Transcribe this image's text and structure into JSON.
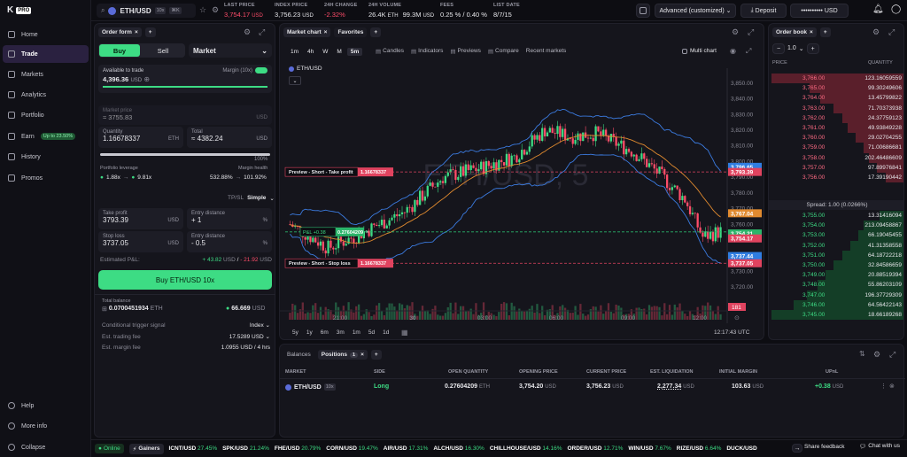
{
  "app": {
    "logo": "K",
    "pro": "PRO"
  },
  "nav": [
    {
      "label": "Home",
      "icon": "home-icon"
    },
    {
      "label": "Trade",
      "icon": "trade-icon"
    },
    {
      "label": "Markets",
      "icon": "markets-icon"
    },
    {
      "label": "Analytics",
      "icon": "analytics-icon"
    },
    {
      "label": "Portfolio",
      "icon": "portfolio-icon"
    },
    {
      "label": "Earn",
      "icon": "earn-icon",
      "pill": "Up to 23.50%"
    },
    {
      "label": "History",
      "icon": "history-icon"
    },
    {
      "label": "Promos",
      "icon": "promos-icon"
    }
  ],
  "nav_bottom": [
    {
      "label": "Help"
    },
    {
      "label": "More info"
    },
    {
      "label": "Collapse"
    }
  ],
  "top": {
    "symbol": "ETH/USD",
    "leverage": "10x",
    "kbd": "⌘K",
    "stats": [
      {
        "label": "LAST PRICE",
        "value": "3,754.17",
        "unit": "USD",
        "color": "#ff4d6a"
      },
      {
        "label": "INDEX PRICE",
        "value": "3,756.23",
        "unit": "USD",
        "color": "#e6e6ea"
      },
      {
        "label": "24H CHANGE",
        "value": "-2.32%",
        "unit": "",
        "color": "#ff4d6a"
      },
      {
        "label": "24H VOLUME",
        "value": "26.4K",
        "unit": "ETH",
        "value2": "99.3M",
        "unit2": "USD",
        "color": "#e6e6ea"
      },
      {
        "label": "FEES",
        "value": "0.25 % / 0.40 %",
        "unit": "",
        "color": "#e6e6ea"
      },
      {
        "label": "LIST DATE",
        "value": "8/7/15",
        "unit": "",
        "color": "#e6e6ea"
      }
    ],
    "mode": "Advanced (customized)",
    "deposit": "Deposit",
    "balance_mask": "••••••••••",
    "balance_unit": "USD"
  },
  "order_form": {
    "tab": "Order form",
    "side_buy": "Buy",
    "side_sell": "Sell",
    "type": "Market",
    "avail_label": "Available to trade",
    "avail_value": "4,396.36",
    "avail_unit": "USD",
    "margin_label": "Margin (10x)",
    "slider_pct": "100%",
    "market_price_label": "Market price",
    "market_price": "≈ 3755.83",
    "market_price_unit": "USD",
    "qty_label": "Quantity",
    "qty": "1.16678337",
    "qty_unit": "ETH",
    "total_label": "Total",
    "total": "≈ 4382.24",
    "total_unit": "USD",
    "lev_label": "Portfolio leverage",
    "lev_from": "1.88x",
    "lev_to": "9.81x",
    "health_label": "Margin health",
    "health_from": "532.88%",
    "health_to": "101.92%",
    "tpsl_label": "TP/SL",
    "tpsl_mode": "Simple",
    "tp_label": "Take profit",
    "tp": "3793.39",
    "tp_unit": "USD",
    "ed_label": "Entry distance",
    "ed": "+ 1",
    "ed_unit": "%",
    "sl_label": "Stop loss",
    "sl": "3737.05",
    "sl_unit": "USD",
    "ed2_label": "Entry distance",
    "ed2": "- 0.5",
    "ed2_unit": "%",
    "pnl_label": "Estimated P&L:",
    "pnl_pos": "+ 43.82",
    "pnl_neg": "- 21.92",
    "pnl_unit": "USD",
    "submit": "Buy ETH/USD 10x",
    "total_balance_label": "Total balance",
    "total_balance": "0.0700451934",
    "total_balance_unit": "ETH",
    "collateral": "66.669",
    "collateral_unit": "USD",
    "trigger_label": "Conditional trigger signal",
    "trigger": "Index",
    "fee_label": "Est. trading fee",
    "fee": "17.5289 USD",
    "mfee_label": "Est. margin fee",
    "mfee": "1.0955 USD / 4 hrs"
  },
  "chart": {
    "tab": "Market chart",
    "tab2": "Favorites",
    "intervals": [
      "1m",
      "4h",
      "W",
      "M",
      "5m"
    ],
    "tools": [
      "Candles",
      "Indicators",
      "Previews",
      "Compare",
      "Recent markets"
    ],
    "multi": "Multi chart",
    "pair": "ETH/USD",
    "watermark": "ETH/USD, 5",
    "tp_preview": "Preview - Short - Take profit",
    "tp_qty": "1.16678337",
    "sl_preview": "Preview - Short - Stop loss",
    "sl_qty": "1.16678337",
    "pnl_chip": "P&L +0.38",
    "pnl_qty": "0.27604209",
    "y_ticks": [
      "3,850.00",
      "3,840.00",
      "3,830.00",
      "3,820.00",
      "3,810.00",
      "3,800.00",
      "3,790.00",
      "3,780.00",
      "3,770.00",
      "3,760.00",
      "3,750.00",
      "3,740.00",
      "3,730.00",
      "3,720.00"
    ],
    "price_tags": [
      {
        "v": "3,796.65",
        "c": "#2f7de1",
        "p": 3796.65
      },
      {
        "v": "3,793.39",
        "c": "#e0435f",
        "p": 3793.39
      },
      {
        "v": "3,767.04",
        "c": "#e08a2f",
        "p": 3767.04
      },
      {
        "v": "3,754.21",
        "c": "#2bb56a",
        "p": 3754.21
      },
      {
        "v": "3,754.17",
        "c": "#e0435f",
        "p": 3751.0
      },
      {
        "v": "3,737.44",
        "c": "#2f7de1",
        "p": 3739.8
      },
      {
        "v": "3,737.05",
        "c": "#e0435f",
        "p": 3735.2
      }
    ],
    "vol_tag": "181",
    "x_ticks": [
      "21:00",
      "30",
      "03:00",
      "06:00",
      "09:00",
      "12:00"
    ],
    "ranges": [
      "5y",
      "1y",
      "6m",
      "3m",
      "1m",
      "5d",
      "1d"
    ],
    "clock": "12:17:43 UTC"
  },
  "orderbook": {
    "tab": "Order book",
    "group": "1.0",
    "price_h": "PRICE",
    "qty_h": "QUANTITY",
    "asks": [
      {
        "p": "3,766.00",
        "q": "123.16059559",
        "w": 0.98
      },
      {
        "p": "3,765.00",
        "q": "99.30249606",
        "w": 0.7
      },
      {
        "p": "3,764.00",
        "q": "13.45799822",
        "w": 0.62
      },
      {
        "p": "3,763.00",
        "q": "71.70373938",
        "w": 0.52
      },
      {
        "p": "3,762.00",
        "q": "24.37759123",
        "w": 0.46
      },
      {
        "p": "3,761.00",
        "q": "49.93849228",
        "w": 0.42
      },
      {
        "p": "3,760.00",
        "q": "29.02704255",
        "w": 0.36
      },
      {
        "p": "3,759.00",
        "q": "71.00686681",
        "w": 0.3
      },
      {
        "p": "3,758.00",
        "q": "202.46486609",
        "w": 0.26
      },
      {
        "p": "3,757.00",
        "q": "97.89976841",
        "w": 0.2
      },
      {
        "p": "3,756.00",
        "q": "17.39190442",
        "w": 0.14
      }
    ],
    "spread": "Spread: 1.00 (0.0266%)",
    "bids": [
      {
        "p": "3,755.00",
        "q": "13.31416094",
        "w": 0.18
      },
      {
        "p": "3,754.00",
        "q": "213.09458867",
        "w": 0.3
      },
      {
        "p": "3,753.00",
        "q": "66.19045455",
        "w": 0.34
      },
      {
        "p": "3,752.00",
        "q": "41.31358558",
        "w": 0.4
      },
      {
        "p": "3,751.00",
        "q": "64.18722218",
        "w": 0.46
      },
      {
        "p": "3,750.00",
        "q": "32.84586659",
        "w": 0.52
      },
      {
        "p": "3,749.00",
        "q": "20.88519394",
        "w": 0.58
      },
      {
        "p": "3,748.00",
        "q": "55.86203109",
        "w": 0.64
      },
      {
        "p": "3,747.00",
        "q": "196.37729309",
        "w": 0.72
      },
      {
        "p": "3,746.00",
        "q": "64.56422143",
        "w": 0.82
      },
      {
        "p": "3,745.00",
        "q": "18.66189268",
        "w": 0.98
      }
    ]
  },
  "positions": {
    "tab1": "Balances",
    "tab2": "Positions",
    "count": "1",
    "headers": [
      "MARKET",
      "SIDE",
      "OPEN QUANTITY",
      "OPENING PRICE",
      "CURRENT PRICE",
      "EST. LIQUIDATION",
      "INITIAL MARGIN",
      "UPnL"
    ],
    "row": {
      "market": "ETH/USD",
      "lev": "10x",
      "side": "Long",
      "qty": "0.27604209",
      "qty_unit": "ETH",
      "open": "3,754.20",
      "open_unit": "USD",
      "cur": "3,756.23",
      "cur_unit": "USD",
      "liq": "2,277.34",
      "liq_unit": "USD",
      "margin": "103.63",
      "margin_unit": "USD",
      "upnl": "+0.38",
      "upnl_unit": "USD"
    }
  },
  "ticker": {
    "online": "Online",
    "gainers": "Gainers",
    "items": [
      {
        "s": "ICNT/USD",
        "c": "27.45%"
      },
      {
        "s": "SPK/USD",
        "c": "21.24%"
      },
      {
        "s": "FHE/USD",
        "c": "20.79%"
      },
      {
        "s": "CORN/USD",
        "c": "19.47%"
      },
      {
        "s": "AIR/USD",
        "c": "17.31%"
      },
      {
        "s": "ALCH/USD",
        "c": "16.30%"
      },
      {
        "s": "CHILLHOUSE/USD",
        "c": "14.16%"
      },
      {
        "s": "ORDER/USD",
        "c": "12.71%"
      },
      {
        "s": "WIN/USD",
        "c": "7.67%"
      },
      {
        "s": "RIZE/USD",
        "c": "6.64%"
      },
      {
        "s": "DUCK/USD",
        "c": ""
      }
    ],
    "feedback": "Share feedback",
    "chat": "Chat with us"
  }
}
